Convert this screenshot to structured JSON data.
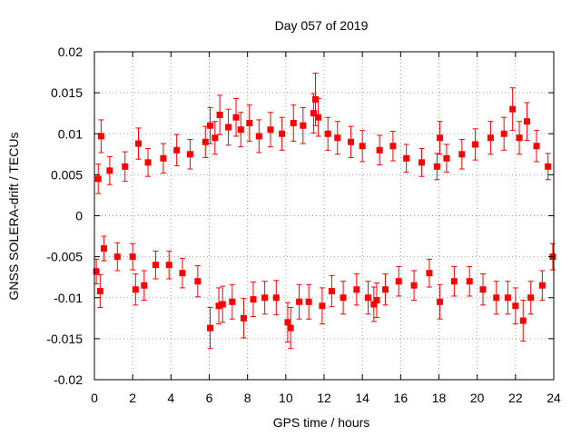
{
  "chart_data": {
    "type": "scatter",
    "title": "Day 057 of 2019",
    "xlabel": "GPS time / hours",
    "ylabel": "GNSS SOLERA-drift / TECUs",
    "xlim": [
      0,
      24
    ],
    "ylim": [
      -0.02,
      0.02
    ],
    "xticks": [
      0,
      2,
      4,
      6,
      8,
      10,
      12,
      14,
      16,
      18,
      20,
      22,
      24
    ],
    "xtick_labels": [
      "0",
      "2",
      "4",
      "6",
      "8",
      "10",
      "12",
      "14",
      "16",
      "18",
      "20",
      "22",
      "24"
    ],
    "yticks": [
      -0.02,
      -0.015,
      -0.01,
      -0.005,
      0,
      0.005,
      0.01,
      0.015,
      0.02
    ],
    "ytick_labels": [
      "-0.02",
      "-0.015",
      "-0.01",
      "-0.005",
      "0",
      "0.005",
      "0.01",
      "0.015",
      "0.02"
    ],
    "grid": true,
    "error_bars": true,
    "series": [
      {
        "color": "#ff0000",
        "marker": "square",
        "points": [
          [
            0.35,
            0.0097,
            0.002
          ],
          [
            0.3,
            -0.0092,
            0.002
          ],
          [
            0.1,
            -0.0068,
            0.0015
          ],
          [
            0.2,
            0.0045,
            0.0018
          ],
          [
            0.5,
            -0.004,
            0.0015
          ],
          [
            0.8,
            0.0055,
            0.0017
          ],
          [
            1.2,
            -0.005,
            0.0017
          ],
          [
            1.6,
            0.006,
            0.0018
          ],
          [
            2.0,
            -0.005,
            0.0016
          ],
          [
            2.15,
            -0.009,
            0.0019
          ],
          [
            2.3,
            0.0088,
            0.0019
          ],
          [
            2.6,
            -0.0085,
            0.0018
          ],
          [
            2.8,
            0.0065,
            0.0017
          ],
          [
            3.2,
            -0.006,
            0.0017
          ],
          [
            3.6,
            0.007,
            0.0018
          ],
          [
            3.9,
            -0.006,
            0.0017
          ],
          [
            4.3,
            0.008,
            0.0019
          ],
          [
            4.6,
            -0.007,
            0.0018
          ],
          [
            5.0,
            0.0075,
            0.0018
          ],
          [
            5.4,
            -0.008,
            0.0019
          ],
          [
            5.8,
            0.009,
            0.0019
          ],
          [
            6.05,
            0.011,
            0.0022
          ],
          [
            6.05,
            -0.0137,
            0.0025
          ],
          [
            6.3,
            0.0095,
            0.002
          ],
          [
            6.5,
            -0.011,
            0.0022
          ],
          [
            6.55,
            0.0123,
            0.0024
          ],
          [
            6.7,
            -0.0108,
            0.0022
          ],
          [
            7.0,
            0.0108,
            0.0022
          ],
          [
            7.2,
            -0.0105,
            0.0021
          ],
          [
            7.4,
            0.012,
            0.0023
          ],
          [
            7.65,
            0.0105,
            0.0021
          ],
          [
            7.8,
            -0.0125,
            0.0024
          ],
          [
            8.1,
            0.0113,
            0.0022
          ],
          [
            8.3,
            -0.0102,
            0.0021
          ],
          [
            8.6,
            0.0097,
            0.002
          ],
          [
            8.9,
            -0.01,
            0.002
          ],
          [
            9.2,
            0.0105,
            0.0021
          ],
          [
            9.5,
            -0.01,
            0.0021
          ],
          [
            9.8,
            0.01,
            0.002
          ],
          [
            10.1,
            -0.013,
            0.0024
          ],
          [
            10.25,
            -0.0137,
            0.0025
          ],
          [
            10.4,
            0.0113,
            0.0022
          ],
          [
            10.7,
            -0.0105,
            0.0021
          ],
          [
            10.9,
            0.011,
            0.0022
          ],
          [
            11.2,
            -0.0105,
            0.0021
          ],
          [
            11.45,
            0.0125,
            0.0024
          ],
          [
            11.55,
            0.0142,
            0.0032
          ],
          [
            11.7,
            0.012,
            0.0023
          ],
          [
            11.9,
            -0.011,
            0.0022
          ],
          [
            12.2,
            0.01,
            0.002
          ],
          [
            12.4,
            -0.0092,
            0.0019
          ],
          [
            12.7,
            0.0095,
            0.002
          ],
          [
            13.0,
            -0.01,
            0.002
          ],
          [
            13.4,
            0.009,
            0.0019
          ],
          [
            13.7,
            -0.009,
            0.0019
          ],
          [
            14.0,
            0.0085,
            0.0019
          ],
          [
            14.3,
            -0.01,
            0.002
          ],
          [
            14.6,
            -0.0108,
            0.0021
          ],
          [
            14.75,
            -0.0103,
            0.0021
          ],
          [
            14.9,
            0.008,
            0.0018
          ],
          [
            15.2,
            -0.009,
            0.0019
          ],
          [
            15.6,
            0.0085,
            0.0018
          ],
          [
            15.9,
            -0.008,
            0.0018
          ],
          [
            16.3,
            0.007,
            0.0017
          ],
          [
            16.7,
            -0.0085,
            0.0018
          ],
          [
            17.1,
            0.0065,
            0.0017
          ],
          [
            17.5,
            -0.007,
            0.0017
          ],
          [
            17.9,
            0.006,
            0.0016
          ],
          [
            18.05,
            0.0095,
            0.002
          ],
          [
            18.05,
            -0.0105,
            0.0021
          ],
          [
            18.4,
            0.007,
            0.0017
          ],
          [
            18.8,
            -0.008,
            0.0018
          ],
          [
            19.2,
            0.0075,
            0.0018
          ],
          [
            19.6,
            -0.008,
            0.0018
          ],
          [
            19.9,
            0.0087,
            0.0019
          ],
          [
            20.3,
            -0.009,
            0.0019
          ],
          [
            20.7,
            0.0095,
            0.002
          ],
          [
            21.0,
            -0.01,
            0.002
          ],
          [
            21.4,
            0.01,
            0.002
          ],
          [
            21.6,
            -0.01,
            0.002
          ],
          [
            21.85,
            0.013,
            0.0026
          ],
          [
            22.0,
            -0.011,
            0.0022
          ],
          [
            22.2,
            0.0095,
            0.002
          ],
          [
            22.4,
            -0.0128,
            0.0025
          ],
          [
            22.6,
            0.0115,
            0.0023
          ],
          [
            22.8,
            -0.01,
            0.002
          ],
          [
            23.1,
            0.0085,
            0.0019
          ],
          [
            23.4,
            -0.0085,
            0.0018
          ],
          [
            23.7,
            0.006,
            0.0016
          ],
          [
            23.95,
            -0.005,
            0.0016
          ]
        ]
      }
    ]
  }
}
